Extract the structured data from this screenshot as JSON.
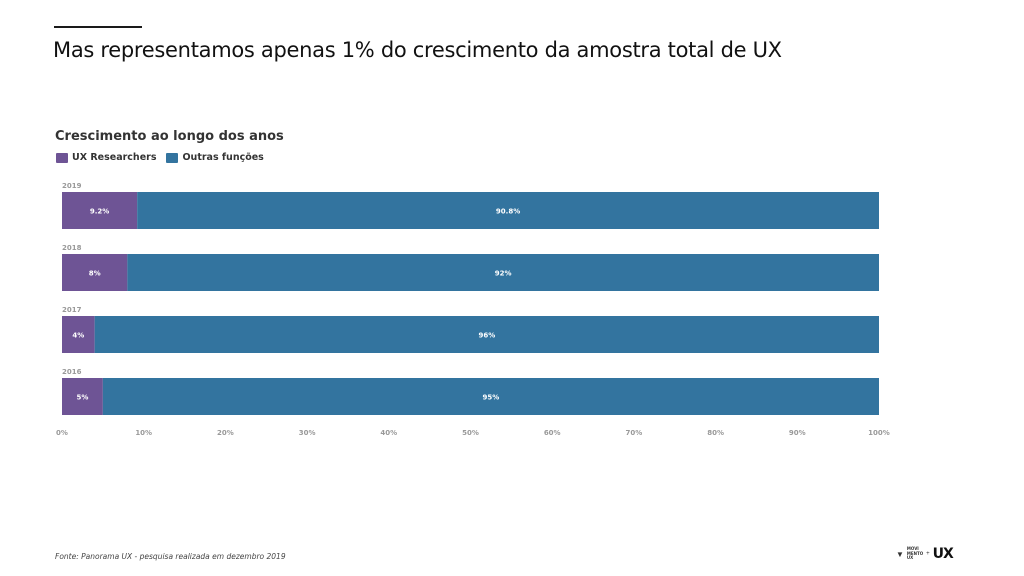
{
  "slide": {
    "title": "Mas representamos apenas 1% do crescimento da amostra total de UX",
    "footer": "Fonte: Panorama UX - pesquisa realizada em dezembro 2019"
  },
  "logo": {
    "line1": "MOVI",
    "line2": "MENTO",
    "line3": "UX",
    "plus": "+",
    "mark": "UX"
  },
  "chart_data": {
    "type": "bar",
    "orientation": "horizontal",
    "stacked": true,
    "title": "Crescimento ao longo dos anos",
    "categories": [
      "2019",
      "2018",
      "2017",
      "2016"
    ],
    "series": [
      {
        "name": "UX Researchers",
        "color": "#6e5495",
        "values": [
          9.2,
          8,
          4,
          5
        ],
        "labels": [
          "9.2%",
          "8%",
          "4%",
          "5%"
        ]
      },
      {
        "name": "Outras funções",
        "color": "#33749f",
        "values": [
          90.8,
          92,
          96,
          95
        ],
        "labels": [
          "90.8%",
          "92%",
          "96%",
          "95%"
        ]
      }
    ],
    "xlim": [
      0,
      100
    ],
    "xticks": [
      "0%",
      "10%",
      "20%",
      "30%",
      "40%",
      "50%",
      "60%",
      "70%",
      "80%",
      "90%",
      "100%"
    ],
    "legend": "top-left",
    "grid": false
  }
}
